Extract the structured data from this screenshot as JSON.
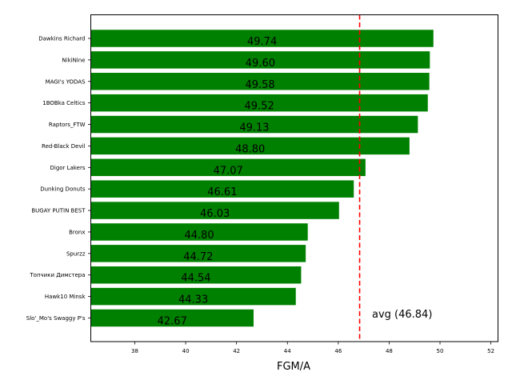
{
  "chart_data": {
    "type": "bar",
    "orientation": "horizontal",
    "title": "",
    "xlabel": "FGM/A",
    "ylabel": "",
    "xlim": [
      36.27,
      52.28
    ],
    "xticks": [
      38,
      40,
      42,
      44,
      46,
      48,
      50,
      52
    ],
    "grid": false,
    "bar_color": "#008000",
    "categories": [
      "Dawkins Richard",
      "NikiNine",
      "MAGI's YODAS",
      "1BOBka Celtics",
      "Raptors_FTW",
      "Red-Black Devil",
      "Digor Lakers",
      "Dunking Donuts",
      "BUGAY PUTIN BEST",
      "Bronx",
      "Spurzz",
      "Топчики Димстера",
      "Hawk10 Minsk",
      "Slo'_Mo's Swaggy P's"
    ],
    "values": [
      49.74,
      49.6,
      49.58,
      49.52,
      49.13,
      48.8,
      47.07,
      46.61,
      46.03,
      44.8,
      44.72,
      44.54,
      44.33,
      42.67
    ],
    "value_labels": [
      "49.74",
      "49.60",
      "49.58",
      "49.52",
      "49.13",
      "48.80",
      "47.07",
      "46.61",
      "46.03",
      "44.80",
      "44.72",
      "44.54",
      "44.33",
      "42.67"
    ],
    "reference_line": {
      "value": 46.84,
      "label": "avg (46.84)",
      "color": "#ff0000",
      "style": "dashed"
    }
  }
}
